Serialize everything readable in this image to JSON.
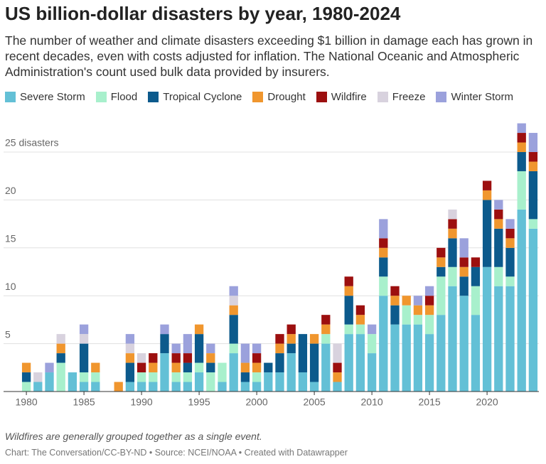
{
  "chart_data": {
    "type": "stacked-bar",
    "title": "US billion-dollar disasters by year, 1980-2024",
    "subtitle": "The number of weather and climate disasters exceeding $1 billion in damage each has grown in recent decades, even with costs adjusted for inflation. The National Oceanic and Atmospheric Administration's count used bulk data provided by insurers.",
    "note": "Wildfires are generally grouped together as a single event.",
    "source": "Chart: The Conversation/CC-BY-ND • Source: NCEI/NOAA • Created with Datawrapper",
    "x": [
      1980,
      1981,
      1982,
      1983,
      1984,
      1985,
      1986,
      1987,
      1988,
      1989,
      1990,
      1991,
      1992,
      1993,
      1994,
      1995,
      1996,
      1997,
      1998,
      1999,
      2000,
      2001,
      2002,
      2003,
      2004,
      2005,
      2006,
      2007,
      2008,
      2009,
      2010,
      2011,
      2012,
      2013,
      2014,
      2015,
      2016,
      2017,
      2018,
      2019,
      2020,
      2021,
      2022,
      2023,
      2024
    ],
    "xlim": [
      1979.5,
      2024.5
    ],
    "xticks": [
      1980,
      1985,
      1990,
      1995,
      2000,
      2005,
      2010,
      2015,
      2020
    ],
    "ylim": [
      0,
      28
    ],
    "yticks": [
      5,
      10,
      15,
      20,
      {
        "value": 25,
        "label": "25 disasters"
      }
    ],
    "grid": true,
    "series": [
      {
        "name": "Severe Storm",
        "color": "#63c0d6",
        "values": [
          0,
          1,
          2,
          0,
          2,
          1,
          1,
          0,
          0,
          1,
          1,
          1,
          4,
          1,
          1,
          2,
          0,
          1,
          4,
          1,
          1,
          2,
          2,
          4,
          2,
          1,
          5,
          1,
          6,
          6,
          4,
          10,
          7,
          7,
          7,
          6,
          8,
          11,
          10,
          8,
          13,
          11,
          11,
          19,
          17
        ]
      },
      {
        "name": "Flood",
        "color": "#a8f0cc",
        "values": [
          1,
          0,
          0,
          3,
          0,
          1,
          1,
          0,
          0,
          0,
          1,
          1,
          0,
          1,
          1,
          1,
          2,
          2,
          1,
          0,
          1,
          0,
          0,
          0,
          0,
          0,
          1,
          0,
          1,
          1,
          2,
          2,
          0,
          2,
          1,
          2,
          4,
          2,
          0,
          3,
          0,
          2,
          1,
          4,
          1
        ]
      },
      {
        "name": "Tropical Cyclone",
        "color": "#0c5a8c",
        "values": [
          1,
          0,
          0,
          1,
          0,
          3,
          0,
          0,
          0,
          2,
          0,
          0,
          2,
          0,
          1,
          3,
          1,
          0,
          3,
          1,
          0,
          1,
          2,
          1,
          4,
          4,
          0,
          0,
          3,
          0,
          0,
          2,
          2,
          0,
          0,
          0,
          1,
          3,
          2,
          2,
          7,
          4,
          3,
          2,
          5
        ]
      },
      {
        "name": "Drought",
        "color": "#f0962e",
        "values": [
          1,
          0,
          0,
          1,
          0,
          0,
          1,
          0,
          1,
          1,
          0,
          1,
          0,
          1,
          0,
          1,
          1,
          0,
          1,
          1,
          1,
          0,
          1,
          1,
          0,
          1,
          1,
          1,
          1,
          1,
          0,
          1,
          1,
          1,
          1,
          1,
          1,
          1,
          1,
          0,
          1,
          1,
          1,
          1,
          1
        ]
      },
      {
        "name": "Wildfire",
        "color": "#9c0f0f",
        "values": [
          0,
          0,
          0,
          0,
          0,
          0,
          0,
          0,
          0,
          0,
          1,
          1,
          0,
          1,
          1,
          0,
          0,
          0,
          0,
          0,
          1,
          0,
          1,
          1,
          0,
          0,
          1,
          1,
          1,
          1,
          0,
          1,
          1,
          0,
          0,
          1,
          1,
          1,
          1,
          1,
          1,
          1,
          1,
          1,
          1
        ]
      },
      {
        "name": "Freeze",
        "color": "#d8d2de",
        "values": [
          0,
          1,
          0,
          1,
          0,
          1,
          0,
          0,
          0,
          1,
          1,
          0,
          0,
          0,
          0,
          0,
          0,
          0,
          1,
          0,
          0,
          0,
          0,
          0,
          0,
          0,
          0,
          2,
          0,
          0,
          0,
          0,
          0,
          0,
          0,
          0,
          0,
          1,
          0,
          0,
          0,
          0,
          0,
          0,
          0
        ]
      },
      {
        "name": "Winter Storm",
        "color": "#9ba1dc",
        "values": [
          0,
          0,
          1,
          0,
          0,
          1,
          0,
          0,
          0,
          1,
          0,
          0,
          1,
          1,
          2,
          0,
          1,
          0,
          1,
          2,
          1,
          0,
          0,
          0,
          0,
          0,
          0,
          0,
          0,
          0,
          1,
          2,
          0,
          0,
          1,
          1,
          0,
          0,
          2,
          0,
          0,
          1,
          1,
          1,
          2
        ]
      }
    ]
  }
}
